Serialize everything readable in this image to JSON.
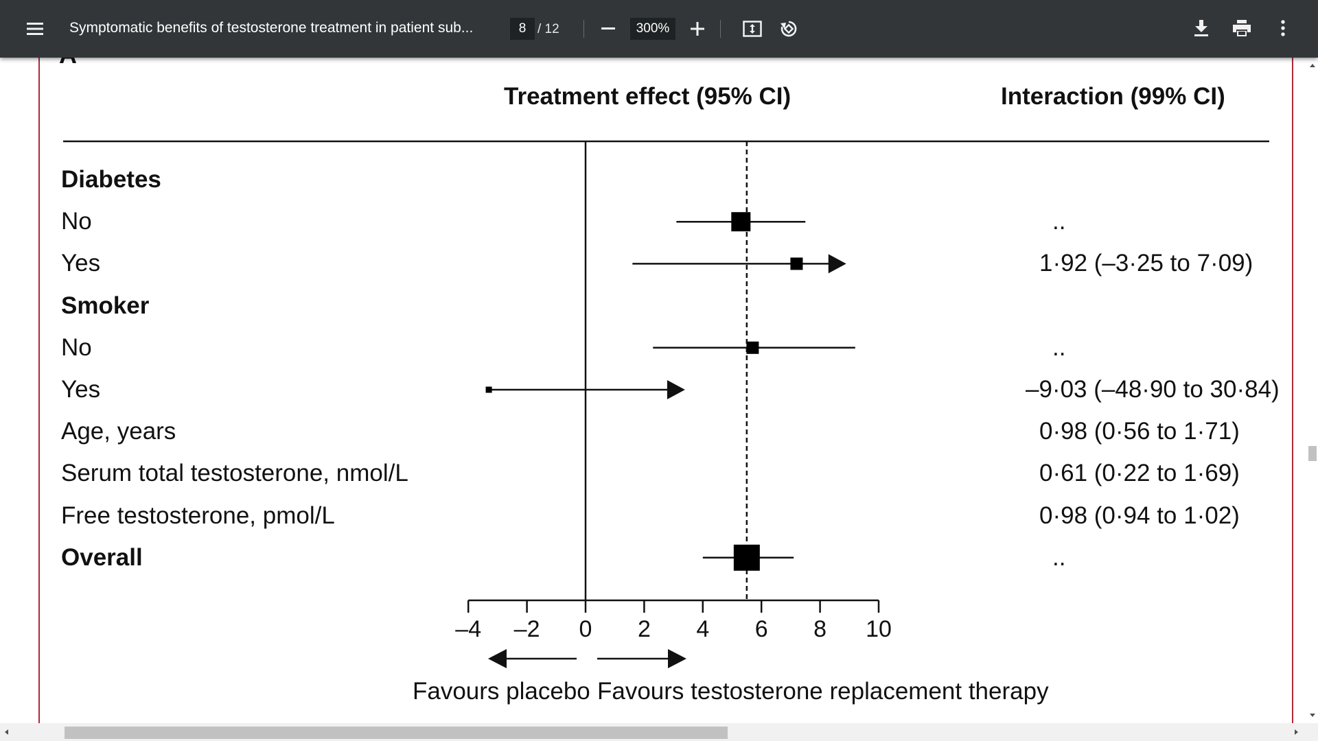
{
  "toolbar": {
    "menu_icon": "hamburger-menu-icon",
    "title": "Symptomatic benefits of testosterone treatment in patient sub...",
    "page_current": "8",
    "page_total": "/ 12",
    "zoom": "300%",
    "icons": [
      "minus-icon",
      "plus-icon",
      "fit-page-icon",
      "rotate-icon",
      "download-icon",
      "print-icon",
      "more-vert-icon"
    ]
  },
  "figure": {
    "header_left": "Treatment effect (95% CI)",
    "header_right": "Interaction (99% CI)",
    "rows": [
      {
        "label": "Diabetes",
        "bold": true,
        "interaction": ""
      },
      {
        "label": "No",
        "bold": false,
        "interaction": ".."
      },
      {
        "label": "Yes",
        "bold": false,
        "interaction": "1·92 (–3·25 to 7·09)"
      },
      {
        "label": "Smoker",
        "bold": true,
        "interaction": ""
      },
      {
        "label": "No",
        "bold": false,
        "interaction": ".."
      },
      {
        "label": "Yes",
        "bold": false,
        "interaction": "–9·03 (–48·90 to 30·84)"
      },
      {
        "label": "Age, years",
        "bold": false,
        "interaction": "0·98 (0·56 to 1·71)"
      },
      {
        "label": "Serum total testosterone, nmol/L",
        "bold": false,
        "interaction": "0·61 (0·22 to 1·69)"
      },
      {
        "label": "Free testosterone, pmol/L",
        "bold": false,
        "interaction": "0·98 (0·94 to 1·02)"
      },
      {
        "label": "Overall",
        "bold": true,
        "interaction": ".."
      }
    ],
    "favours_left": "Favours placebo",
    "favours_right": "Favours testosterone replacement therapy"
  },
  "chart_data": {
    "type": "forest",
    "x_ticks": [
      "–4",
      "–2",
      "0",
      "2",
      "4",
      "6",
      "8",
      "10"
    ],
    "x_tick_values": [
      -4,
      -2,
      0,
      2,
      4,
      6,
      8,
      10
    ],
    "xlim": [
      -4,
      10
    ],
    "reference_line": 0,
    "overall_dashed_line": 5.5,
    "estimates": [
      {
        "row": 1,
        "point": 5.3,
        "low": 3.1,
        "high": 7.5,
        "arrow_right": false,
        "marker": "medium"
      },
      {
        "row": 2,
        "point": 7.2,
        "low": 1.6,
        "high": 8.8,
        "arrow_right": true,
        "marker": "small"
      },
      {
        "row": 4,
        "point": 5.7,
        "low": 2.3,
        "high": 9.2,
        "arrow_right": false,
        "marker": "small"
      },
      {
        "row": 5,
        "point": -3.3,
        "low": -3.4,
        "high": 3.3,
        "arrow_right": true,
        "marker": "tiny"
      },
      {
        "row": 9,
        "point": 5.5,
        "low": 4.0,
        "high": 7.1,
        "arrow_right": false,
        "marker": "large"
      }
    ]
  }
}
